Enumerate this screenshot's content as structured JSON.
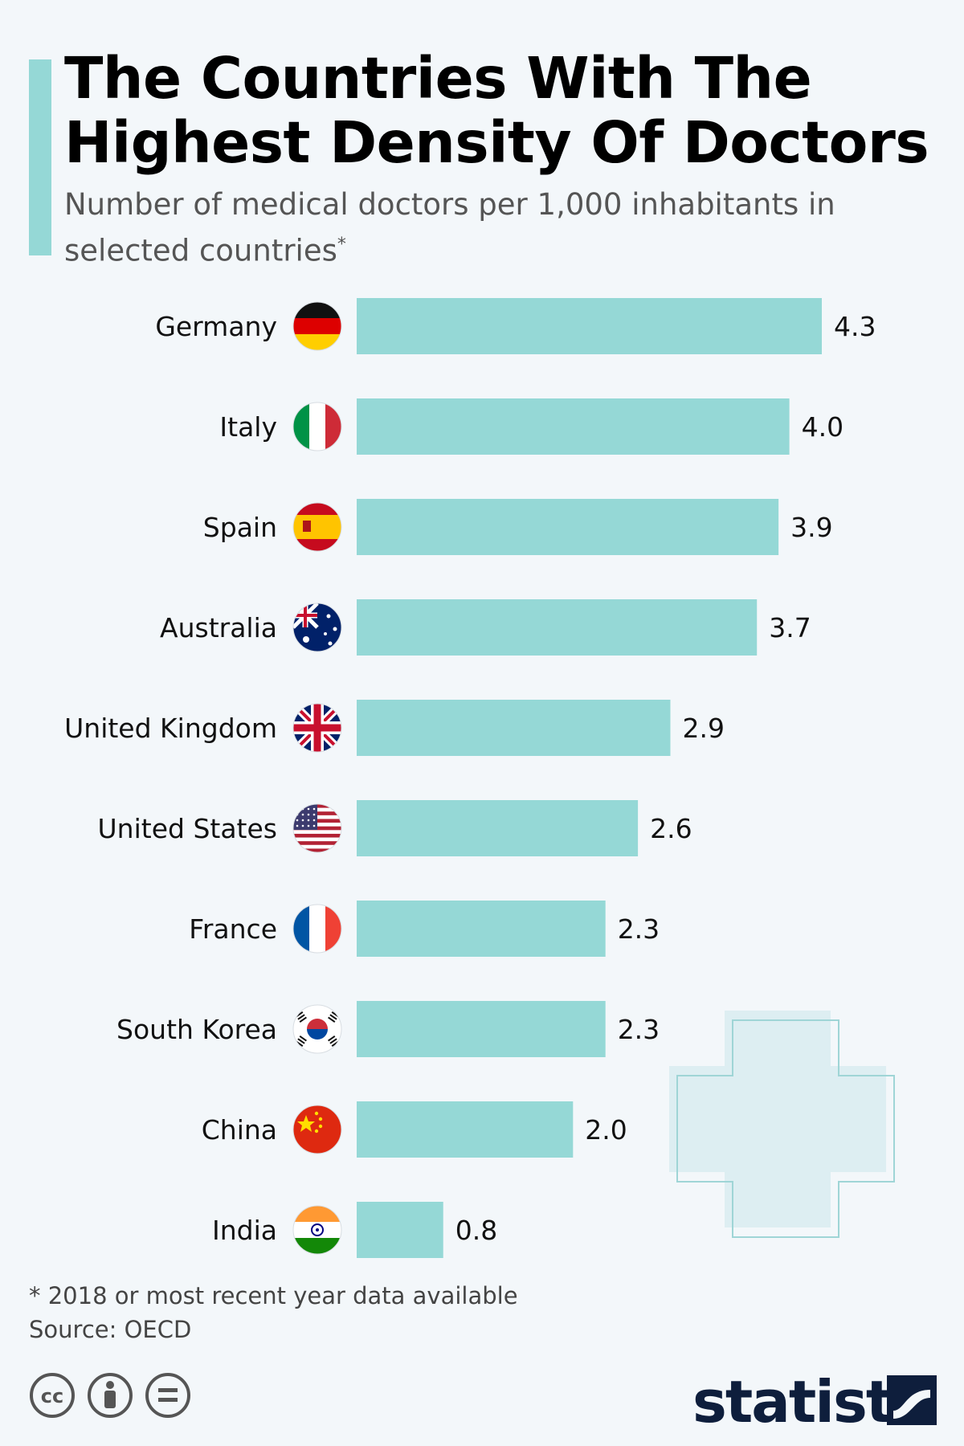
{
  "header": {
    "title": "The Countries With The Highest Density Of Doctors",
    "subtitle": "Number of medical doctors per 1,000 inhabitants in selected countries",
    "subtitle_mark": "*"
  },
  "chart_data": {
    "type": "bar",
    "orientation": "horizontal",
    "title": "The Countries With The Highest Density Of Doctors",
    "subtitle": "Number of medical doctors per 1,000 inhabitants in selected countries",
    "categories": [
      "Germany",
      "Italy",
      "Spain",
      "Australia",
      "United Kingdom",
      "United States",
      "France",
      "South Korea",
      "China",
      "India"
    ],
    "values": [
      4.3,
      4.0,
      3.9,
      3.7,
      2.9,
      2.6,
      2.3,
      2.3,
      2.0,
      0.8
    ],
    "value_labels": [
      "4.3",
      "4.0",
      "3.9",
      "3.7",
      "2.9",
      "2.6",
      "2.3",
      "2.3",
      "2.0",
      "0.8"
    ],
    "xlim": [
      0,
      4.3
    ],
    "bar_color": "#95d8d6",
    "grid": false,
    "legend": "none"
  },
  "flags": [
    "germany-flag-icon",
    "italy-flag-icon",
    "spain-flag-icon",
    "australia-flag-icon",
    "united-kingdom-flag-icon",
    "united-states-flag-icon",
    "france-flag-icon",
    "south-korea-flag-icon",
    "china-flag-icon",
    "india-flag-icon"
  ],
  "footer": {
    "note": "* 2018 or most recent year data available",
    "source": "Source: OECD",
    "brand": "statista",
    "license_icons": [
      "cc-icon",
      "attribution-icon",
      "no-derivatives-icon"
    ]
  },
  "colors": {
    "accent": "#95d8d6",
    "background": "#f3f7fa",
    "brand": "#0e1e3c"
  }
}
